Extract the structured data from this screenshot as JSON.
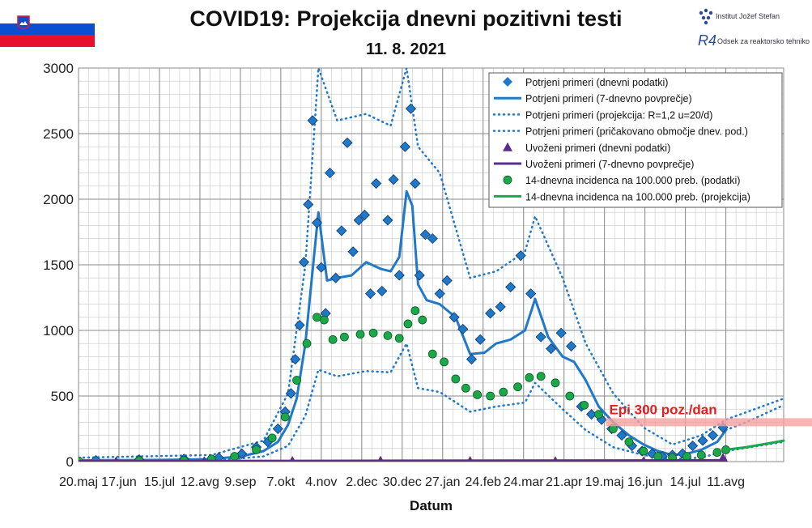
{
  "header": {
    "title": "COVID19: Projekcija dnevni pozitivni testi",
    "subtitle": "11. 8. 2021",
    "logo1_text": "Institut Jožef Stefan",
    "logo2_text": "Odsek za reaktorsko tehniko",
    "logo2_mark": "R4"
  },
  "colors": {
    "confirmed": "#1f78c8",
    "imported": "#5b2d8e",
    "incidence": "#1aa84a",
    "epi_band": "#f6a0a0",
    "epi_text": "#e02020"
  },
  "chart_data": {
    "type": "line",
    "xlabel": "Datum",
    "ylabel": "",
    "ylim": [
      0,
      3000
    ],
    "yticks": [
      0,
      500,
      1000,
      1500,
      2000,
      2500,
      3000
    ],
    "xlim": [
      "2020-05-20",
      "2021-09-20"
    ],
    "xticks": [
      "20.maj",
      "17.jun",
      "15.jul",
      "12.avg",
      "9.sep",
      "7.okt",
      "4.nov",
      "2.dec",
      "30.dec",
      "27.jan",
      "24.feb",
      "24.mar",
      "21.apr",
      "19.maj",
      "16.jun",
      "14.jul",
      "11.avg"
    ],
    "grid": true,
    "legend_position": "top-right",
    "annotation": {
      "text": "Epi 300 poz./dan",
      "y": 300,
      "from": "2021-05-20"
    },
    "series": [
      {
        "name": "Potrjeni primeri (dnevni podatki)",
        "kind": "markers-diamond",
        "x": [
          "2020-06-01",
          "2020-07-01",
          "2020-08-01",
          "2020-08-25",
          "2020-09-10",
          "2020-09-20",
          "2020-09-28",
          "2020-10-05",
          "2020-10-10",
          "2020-10-14",
          "2020-10-17",
          "2020-10-20",
          "2020-10-23",
          "2020-10-26",
          "2020-10-29",
          "2020-11-01",
          "2020-11-04",
          "2020-11-07",
          "2020-11-10",
          "2020-11-14",
          "2020-11-18",
          "2020-11-22",
          "2020-11-26",
          "2020-11-30",
          "2020-12-04",
          "2020-12-08",
          "2020-12-12",
          "2020-12-16",
          "2020-12-20",
          "2020-12-24",
          "2020-12-28",
          "2021-01-01",
          "2021-01-05",
          "2021-01-08",
          "2021-01-11",
          "2021-01-15",
          "2021-01-20",
          "2021-01-25",
          "2021-01-30",
          "2021-02-04",
          "2021-02-10",
          "2021-02-16",
          "2021-02-22",
          "2021-03-01",
          "2021-03-08",
          "2021-03-15",
          "2021-03-22",
          "2021-03-29",
          "2021-04-05",
          "2021-04-12",
          "2021-04-19",
          "2021-04-26",
          "2021-05-03",
          "2021-05-10",
          "2021-05-17",
          "2021-05-24",
          "2021-05-31",
          "2021-06-07",
          "2021-06-14",
          "2021-06-21",
          "2021-06-28",
          "2021-07-05",
          "2021-07-12",
          "2021-07-19",
          "2021-07-26",
          "2021-08-02",
          "2021-08-09"
        ],
        "values": [
          10,
          15,
          20,
          30,
          60,
          110,
          150,
          250,
          380,
          520,
          780,
          1040,
          1520,
          1960,
          2600,
          1820,
          1480,
          1130,
          2200,
          1400,
          1760,
          2430,
          1600,
          1840,
          1880,
          1280,
          2120,
          1300,
          1840,
          2150,
          1420,
          2400,
          2690,
          2120,
          1420,
          1730,
          1700,
          1280,
          1380,
          1100,
          1010,
          780,
          930,
          1130,
          1180,
          1330,
          1570,
          1280,
          950,
          860,
          980,
          880,
          420,
          360,
          320,
          250,
          200,
          120,
          80,
          60,
          40,
          50,
          60,
          120,
          160,
          200,
          260
        ]
      },
      {
        "name": "Potrjeni primeri (7-dnevno povprečje)",
        "kind": "line-solid",
        "x": [
          "2020-05-20",
          "2020-07-01",
          "2020-08-01",
          "2020-08-20",
          "2020-09-10",
          "2020-09-25",
          "2020-10-05",
          "2020-10-12",
          "2020-10-18",
          "2020-10-24",
          "2020-10-28",
          "2020-11-02",
          "2020-11-08",
          "2020-11-15",
          "2020-11-25",
          "2020-12-05",
          "2020-12-15",
          "2020-12-22",
          "2020-12-28",
          "2021-01-02",
          "2021-01-06",
          "2021-01-10",
          "2021-01-16",
          "2021-01-25",
          "2021-02-05",
          "2021-02-15",
          "2021-02-25",
          "2021-03-05",
          "2021-03-15",
          "2021-03-25",
          "2021-04-01",
          "2021-04-10",
          "2021-04-20",
          "2021-04-28",
          "2021-05-06",
          "2021-05-15",
          "2021-05-25",
          "2021-06-05",
          "2021-06-15",
          "2021-06-25",
          "2021-07-05",
          "2021-07-15",
          "2021-07-25",
          "2021-08-05",
          "2021-08-11"
        ],
        "values": [
          10,
          12,
          15,
          20,
          40,
          80,
          150,
          280,
          480,
          900,
          1350,
          1900,
          1380,
          1400,
          1420,
          1520,
          1470,
          1450,
          1560,
          2060,
          1950,
          1350,
          1230,
          1200,
          1100,
          820,
          830,
          900,
          930,
          1000,
          1240,
          950,
          800,
          760,
          620,
          420,
          300,
          200,
          130,
          80,
          50,
          60,
          90,
          150,
          240
        ]
      },
      {
        "name": "Potrjeni primeri (projekcija: R=1,2 u=20/d)",
        "kind": "line-dotted",
        "x": [
          "2021-08-11",
          "2021-08-25",
          "2021-09-10",
          "2021-09-20"
        ],
        "values": [
          240,
          300,
          380,
          430
        ]
      },
      {
        "name": "Potrjeni primeri (pričakovano območje dnev. pod.)",
        "kind": "band-dotted",
        "x": [
          "2020-05-20",
          "2020-08-20",
          "2020-09-25",
          "2020-10-12",
          "2020-10-24",
          "2020-11-02",
          "2020-11-15",
          "2020-12-05",
          "2020-12-22",
          "2021-01-02",
          "2021-01-10",
          "2021-01-25",
          "2021-02-15",
          "2021-03-05",
          "2021-03-25",
          "2021-04-01",
          "2021-04-20",
          "2021-05-06",
          "2021-05-25",
          "2021-06-15",
          "2021-07-05",
          "2021-07-25",
          "2021-08-11",
          "2021-09-20"
        ],
        "upper": [
          30,
          50,
          160,
          520,
          1500,
          3000,
          2600,
          2650,
          2560,
          3000,
          2400,
          2200,
          1400,
          1450,
          1600,
          1870,
          1400,
          900,
          520,
          260,
          130,
          200,
          320,
          480
        ],
        "lower": [
          0,
          5,
          40,
          120,
          350,
          700,
          650,
          690,
          680,
          900,
          560,
          530,
          380,
          420,
          450,
          600,
          400,
          240,
          110,
          50,
          20,
          30,
          80,
          150
        ]
      },
      {
        "name": "Uvoženi primeri (dnevni podatki)",
        "kind": "markers-triangle",
        "x": [
          "2020-06-15",
          "2020-08-15",
          "2020-10-15",
          "2020-12-15",
          "2021-02-15",
          "2021-04-15",
          "2021-06-15",
          "2021-08-09"
        ],
        "values": [
          2,
          4,
          6,
          8,
          6,
          5,
          4,
          30
        ]
      },
      {
        "name": "Uvoženi primeri (7-dnevno povprečje)",
        "kind": "line-solid",
        "x": [
          "2020-05-20",
          "2021-08-11"
        ],
        "values": [
          3,
          10
        ]
      },
      {
        "name": "14-dnevna incidenca na 100.000 preb. (podatki)",
        "kind": "markers-circle",
        "x": [
          "2020-05-20",
          "2020-07-01",
          "2020-08-01",
          "2020-08-20",
          "2020-09-05",
          "2020-09-20",
          "2020-10-01",
          "2020-10-10",
          "2020-10-18",
          "2020-10-25",
          "2020-11-01",
          "2020-11-06",
          "2020-11-12",
          "2020-11-20",
          "2020-12-01",
          "2020-12-10",
          "2020-12-20",
          "2020-12-28",
          "2021-01-03",
          "2021-01-08",
          "2021-01-13",
          "2021-01-20",
          "2021-01-28",
          "2021-02-05",
          "2021-02-12",
          "2021-02-20",
          "2021-03-01",
          "2021-03-10",
          "2021-03-20",
          "2021-03-28",
          "2021-04-05",
          "2021-04-15",
          "2021-04-25",
          "2021-05-05",
          "2021-05-15",
          "2021-05-25",
          "2021-06-05",
          "2021-06-15",
          "2021-06-25",
          "2021-07-05",
          "2021-07-15",
          "2021-07-25",
          "2021-08-05",
          "2021-08-11"
        ],
        "values": [
          5,
          8,
          10,
          20,
          40,
          90,
          180,
          340,
          620,
          900,
          1100,
          1080,
          930,
          950,
          970,
          980,
          960,
          940,
          1050,
          1150,
          1080,
          820,
          760,
          630,
          560,
          510,
          500,
          530,
          570,
          640,
          650,
          600,
          500,
          430,
          360,
          250,
          150,
          80,
          40,
          30,
          40,
          50,
          70,
          90
        ]
      },
      {
        "name": "14-dnevna incidenca na 100.000 preb. (projekcija)",
        "kind": "line-solid",
        "x": [
          "2021-08-11",
          "2021-08-25",
          "2021-09-10",
          "2021-09-20"
        ],
        "values": [
          90,
          110,
          140,
          160
        ]
      }
    ]
  }
}
